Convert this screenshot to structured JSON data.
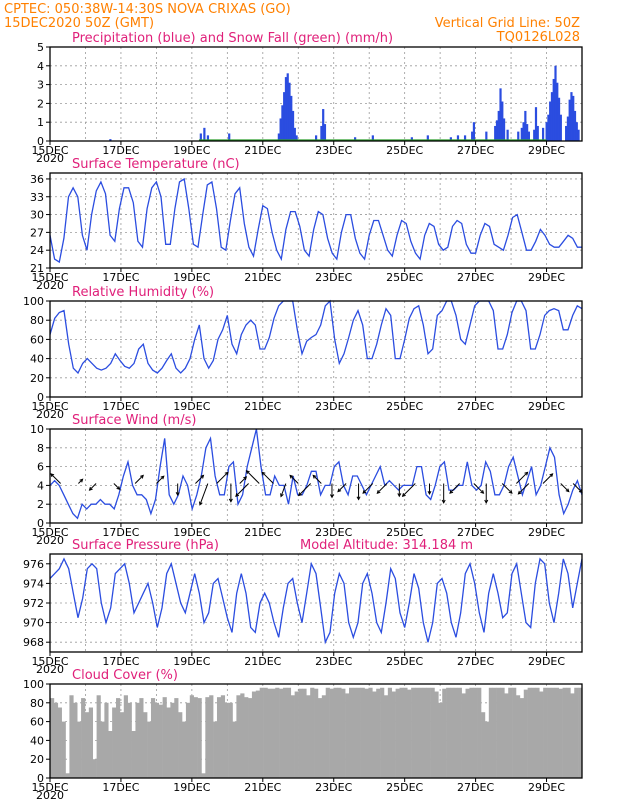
{
  "header": {
    "left_line1": "CPTEC:   050:38W-14:30S   NOVA CRIXAS (GO)",
    "left_line2": "15DEC2020  50Z (GMT)",
    "right_line1": "Vertical Grid Line: 50Z",
    "right_line2": "TQ0126L028"
  },
  "x_axis": {
    "tick_labels": [
      "15DEC",
      "17DEC",
      "19DEC",
      "21DEC",
      "23DEC",
      "25DEC",
      "27DEC",
      "29DEC"
    ],
    "year_label": "2020",
    "days": 15
  },
  "chart_data": [
    {
      "id": "precip",
      "type": "bar",
      "title": "Precipitation (blue) and Snow Fall (green) (mm/h)",
      "ylim": [
        0,
        5
      ],
      "yticks": [
        "0",
        "1",
        "2",
        "3",
        "4",
        "5"
      ],
      "series": [
        {
          "name": "Precipitation",
          "color": "#2b4de0",
          "points": [
            [
              1.7,
              0.1
            ],
            [
              4.25,
              0.4
            ],
            [
              4.35,
              0.7
            ],
            [
              4.45,
              0.3
            ],
            [
              5.05,
              0.4
            ],
            [
              6.45,
              0.4
            ],
            [
              6.5,
              1.2
            ],
            [
              6.55,
              1.9
            ],
            [
              6.6,
              2.6
            ],
            [
              6.65,
              3.4
            ],
            [
              6.7,
              3.6
            ],
            [
              6.75,
              3.1
            ],
            [
              6.8,
              2.4
            ],
            [
              6.85,
              1.6
            ],
            [
              6.9,
              0.7
            ],
            [
              6.95,
              0.3
            ],
            [
              7.5,
              0.3
            ],
            [
              7.65,
              0.8
            ],
            [
              7.7,
              1.7
            ],
            [
              7.75,
              0.9
            ],
            [
              8.6,
              0.2
            ],
            [
              9.1,
              0.3
            ],
            [
              10.2,
              0.2
            ],
            [
              10.65,
              0.3
            ],
            [
              11.3,
              0.2
            ],
            [
              11.5,
              0.3
            ],
            [
              11.7,
              0.3
            ],
            [
              11.9,
              0.5
            ],
            [
              11.95,
              1.0
            ],
            [
              12.3,
              0.5
            ],
            [
              12.55,
              0.8
            ],
            [
              12.6,
              1.1
            ],
            [
              12.65,
              1.6
            ],
            [
              12.7,
              2.8
            ],
            [
              12.75,
              2.1
            ],
            [
              12.8,
              1.2
            ],
            [
              12.9,
              0.6
            ],
            [
              13.2,
              0.5
            ],
            [
              13.3,
              0.7
            ],
            [
              13.35,
              1.0
            ],
            [
              13.4,
              1.6
            ],
            [
              13.45,
              0.9
            ],
            [
              13.5,
              0.5
            ],
            [
              13.65,
              0.6
            ],
            [
              13.7,
              1.8
            ],
            [
              13.75,
              0.8
            ],
            [
              13.9,
              0.7
            ],
            [
              14.0,
              1.0
            ],
            [
              14.05,
              1.4
            ],
            [
              14.1,
              2.1
            ],
            [
              14.15,
              2.6
            ],
            [
              14.2,
              3.3
            ],
            [
              14.25,
              4.0
            ],
            [
              14.3,
              3.1
            ],
            [
              14.35,
              2.3
            ],
            [
              14.4,
              1.4
            ],
            [
              14.55,
              0.8
            ],
            [
              14.6,
              1.3
            ],
            [
              14.65,
              2.2
            ],
            [
              14.7,
              2.6
            ],
            [
              14.75,
              2.4
            ],
            [
              14.8,
              1.6
            ],
            [
              14.85,
              1.0
            ],
            [
              14.9,
              0.6
            ]
          ]
        },
        {
          "name": "Snow Fall",
          "color": "#2a9d2a",
          "points": [
            [
              4.2,
              0.05
            ],
            [
              14.0,
              0.05
            ]
          ]
        }
      ]
    },
    {
      "id": "temp",
      "type": "line",
      "title": "Surface Temperature (nC)",
      "ylim": [
        21,
        37
      ],
      "yticks": [
        "21",
        "24",
        "27",
        "30",
        "33",
        "36"
      ],
      "series": [
        {
          "name": "Temperature",
          "color": "#2b4de0",
          "values": [
            26.5,
            22.5,
            22,
            26,
            33,
            34.5,
            33,
            26.5,
            24,
            30,
            34,
            35.5,
            33.5,
            26.5,
            25.5,
            31,
            34.5,
            34.5,
            32,
            25.5,
            24.5,
            31,
            34.5,
            35.5,
            33,
            25,
            25,
            31,
            35.5,
            36,
            31,
            25,
            24.5,
            30,
            35,
            35.5,
            31,
            24.5,
            24,
            29,
            33.5,
            34.5,
            28.5,
            24.5,
            23,
            27.5,
            31.5,
            31,
            27,
            24,
            22.5,
            27.5,
            30.5,
            30.5,
            28,
            24,
            23,
            27.5,
            30.5,
            30,
            26,
            23.5,
            22.5,
            27,
            30,
            30,
            26,
            23.5,
            22.5,
            26.5,
            29,
            29,
            26.5,
            24,
            23,
            26.5,
            29,
            28.5,
            25.5,
            23.5,
            22.5,
            26.5,
            28.5,
            28,
            25,
            24,
            24.5,
            28,
            29,
            28.5,
            25,
            23.5,
            23.5,
            26.5,
            28.5,
            28,
            25,
            24.5,
            24,
            26.5,
            29.5,
            30,
            27,
            24,
            24,
            25.5,
            27.5,
            26.5,
            25,
            24.5,
            24.5,
            25.5,
            26.5,
            26,
            24.5,
            24.5
          ]
        }
      ]
    },
    {
      "id": "rh",
      "type": "line",
      "title": "Relative Humidity (%)",
      "ylim": [
        0,
        100
      ],
      "yticks": [
        "0",
        "20",
        "40",
        "60",
        "80",
        "100"
      ],
      "series": [
        {
          "name": "Relative Humidity",
          "color": "#2b4de0",
          "values": [
            65,
            82,
            88,
            90,
            55,
            30,
            25,
            35,
            40,
            35,
            30,
            28,
            30,
            35,
            45,
            38,
            32,
            30,
            35,
            50,
            55,
            35,
            28,
            25,
            30,
            38,
            45,
            30,
            25,
            30,
            40,
            60,
            75,
            40,
            30,
            38,
            60,
            70,
            85,
            55,
            45,
            65,
            75,
            80,
            75,
            50,
            50,
            62,
            82,
            95,
            100,
            100,
            100,
            70,
            45,
            58,
            62,
            65,
            75,
            95,
            100,
            60,
            35,
            45,
            62,
            80,
            90,
            75,
            40,
            40,
            55,
            75,
            92,
            85,
            40,
            40,
            60,
            82,
            92,
            95,
            75,
            45,
            50,
            85,
            90,
            100,
            100,
            85,
            60,
            55,
            75,
            95,
            100,
            100,
            100,
            90,
            50,
            50,
            65,
            88,
            100,
            100,
            90,
            50,
            50,
            65,
            85,
            90,
            92,
            90,
            70,
            70,
            85,
            95,
            92
          ]
        }
      ]
    },
    {
      "id": "wind",
      "type": "line",
      "title": "Surface Wind (m/s)",
      "ylim": [
        0,
        10
      ],
      "yticks": [
        "0",
        "2",
        "4",
        "6",
        "8",
        "10"
      ],
      "series": [
        {
          "name": "Wind speed",
          "color": "#2b4de0",
          "values": [
            4,
            4.5,
            4,
            3,
            2,
            1,
            0.5,
            2,
            1.5,
            2,
            2,
            2.5,
            2,
            2,
            1.5,
            3,
            5,
            6.5,
            4,
            3,
            3,
            2.5,
            1,
            2.5,
            6,
            9,
            3,
            2,
            3,
            5,
            4,
            1.5,
            3,
            5,
            8,
            9,
            5,
            3,
            3,
            6,
            6.5,
            2,
            3,
            6,
            8,
            10,
            6,
            3,
            3,
            5,
            4,
            4,
            2,
            5,
            3,
            3,
            4,
            5.5,
            5.5,
            3,
            4,
            4,
            6,
            6.5,
            4,
            3,
            5,
            5,
            4,
            3,
            4,
            5,
            6,
            4,
            4.5,
            4,
            3.5,
            4,
            4,
            4,
            6,
            6,
            3,
            2.5,
            4,
            6,
            6.5,
            3.5,
            3.5,
            4,
            4,
            6.5,
            4,
            3.5,
            4,
            6.5,
            5.5,
            3,
            3,
            4,
            6,
            7,
            5,
            3,
            4.5,
            6,
            3,
            4,
            6,
            8,
            7,
            3,
            1,
            2,
            3.5,
            4.5,
            3
          ]
        }
      ],
      "arrows": [
        [
          0.3,
          "NW"
        ],
        [
          0.8,
          "NE"
        ],
        [
          1.3,
          "SW"
        ],
        [
          1.8,
          "SE"
        ],
        [
          2.4,
          "NE"
        ],
        [
          3.0,
          "NE"
        ],
        [
          3.6,
          "S"
        ],
        [
          4.1,
          "NE"
        ],
        [
          4.45,
          "SSW"
        ],
        [
          4.7,
          "NE"
        ],
        [
          5.1,
          "S"
        ],
        [
          5.35,
          "NE"
        ],
        [
          5.6,
          "SW"
        ],
        [
          5.9,
          "NW"
        ],
        [
          6.3,
          "NW"
        ],
        [
          6.65,
          "SSW"
        ],
        [
          7.0,
          "NW"
        ],
        [
          7.35,
          "SW"
        ],
        [
          7.65,
          "NW"
        ],
        [
          7.95,
          "S"
        ],
        [
          8.35,
          "SW"
        ],
        [
          8.7,
          "S"
        ],
        [
          9.1,
          "SW"
        ],
        [
          9.5,
          "SW"
        ],
        [
          9.85,
          "S"
        ],
        [
          10.3,
          "SW"
        ],
        [
          10.7,
          "S"
        ],
        [
          11.1,
          "S"
        ],
        [
          11.55,
          "SW"
        ],
        [
          11.95,
          "SE"
        ],
        [
          12.3,
          "S"
        ],
        [
          12.75,
          "SE"
        ],
        [
          13.15,
          "NE"
        ],
        [
          13.5,
          "SW"
        ],
        [
          13.9,
          "NE"
        ],
        [
          14.4,
          "SE"
        ],
        [
          14.75,
          "SE"
        ]
      ]
    },
    {
      "id": "pressure",
      "type": "line",
      "title": "Surface Pressure (hPa)",
      "subtitle": "Model Altitude: 314.184 m",
      "ylim": [
        967,
        977
      ],
      "yticks": [
        "968",
        "970",
        "972",
        "974",
        "976"
      ],
      "series": [
        {
          "name": "Pressure",
          "color": "#2b4de0",
          "values": [
            974.5,
            975,
            975.5,
            976.5,
            975.5,
            973,
            970.5,
            972.5,
            975.5,
            976,
            975.5,
            972,
            970,
            971.5,
            975,
            975.5,
            976,
            974,
            971,
            972,
            973,
            974,
            972,
            969.5,
            971.5,
            975,
            976,
            974,
            972,
            971,
            973,
            975,
            973,
            970,
            971,
            974,
            974.5,
            972.5,
            970.5,
            969,
            973,
            975,
            973,
            969.5,
            969,
            972,
            973,
            972,
            970,
            968.5,
            971.5,
            974,
            974.5,
            972,
            970,
            973,
            976,
            975,
            971.5,
            968,
            969,
            973,
            975,
            974,
            970,
            968.5,
            970,
            974,
            975,
            973,
            970,
            969,
            972,
            975.5,
            974.5,
            971,
            969.5,
            972,
            975,
            973.5,
            970,
            968,
            970,
            974,
            974.5,
            973,
            970,
            968.5,
            971,
            975,
            976,
            974,
            971,
            969,
            973,
            975,
            973,
            970.5,
            971,
            975,
            976,
            973,
            970,
            969.5,
            974,
            976.5,
            976,
            972,
            970,
            973,
            976.5,
            975,
            971.5,
            974,
            976.5
          ]
        }
      ]
    },
    {
      "id": "cloud",
      "type": "area",
      "title": "Cloud Cover (%)",
      "ylim": [
        0,
        100
      ],
      "yticks": [
        "0",
        "20",
        "40",
        "60",
        "80",
        "100"
      ],
      "series": [
        {
          "name": "Cloud cover",
          "color": "#a8a8a8",
          "values": [
            85,
            80,
            75,
            60,
            5,
            88,
            80,
            60,
            85,
            70,
            75,
            20,
            88,
            60,
            80,
            50,
            75,
            85,
            70,
            88,
            80,
            50,
            80,
            85,
            70,
            60,
            85,
            80,
            78,
            86,
            75,
            80,
            85,
            70,
            60,
            80,
            88,
            86,
            85,
            5,
            86,
            88,
            60,
            86,
            88,
            80,
            80,
            60,
            88,
            90,
            86,
            85,
            92,
            93,
            96,
            96,
            95,
            95,
            96,
            95,
            96,
            96,
            88,
            92,
            95,
            95,
            88,
            96,
            95,
            85,
            88,
            96,
            95,
            96,
            96,
            95,
            90,
            96,
            96,
            96,
            96,
            95,
            96,
            92,
            95,
            96,
            88,
            96,
            92,
            95,
            96,
            96,
            94,
            96,
            96,
            96,
            96,
            96,
            96,
            92,
            80,
            95,
            96,
            96,
            96,
            96,
            90,
            95,
            96,
            96,
            96,
            70,
            60,
            96,
            96,
            96,
            96,
            90,
            96,
            96,
            88,
            85,
            94,
            96,
            96,
            96,
            92,
            96,
            96,
            96,
            96,
            95,
            96,
            96,
            90,
            96,
            96
          ]
        }
      ]
    }
  ]
}
